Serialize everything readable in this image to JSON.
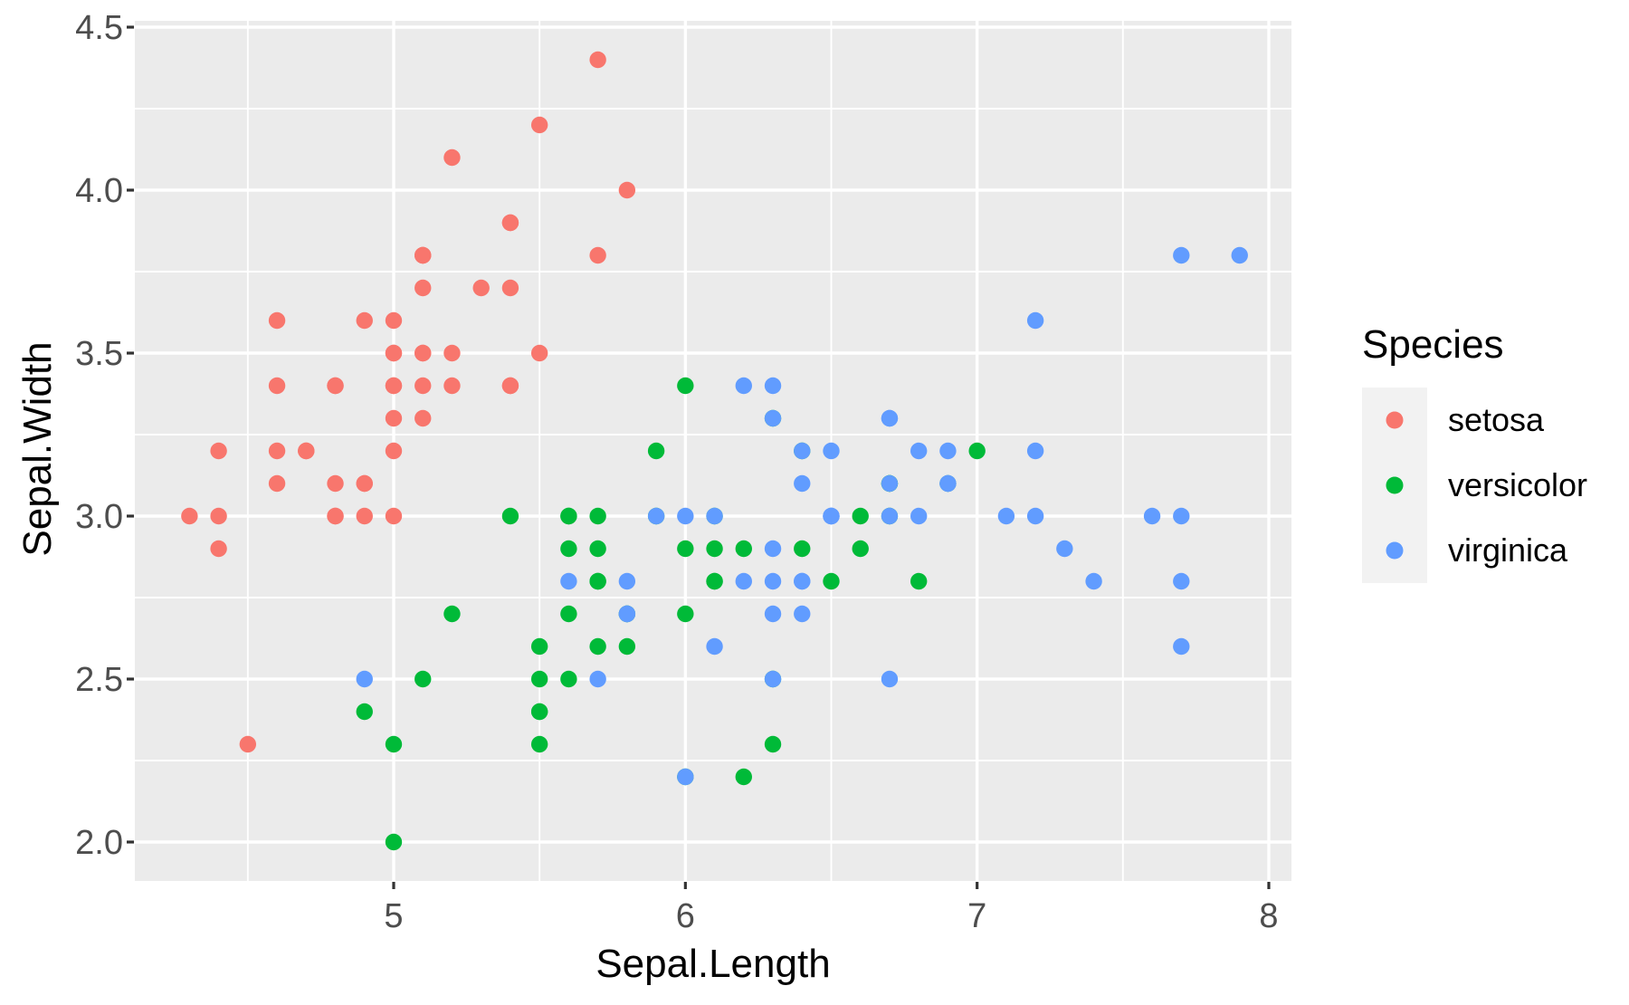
{
  "chart_data": {
    "type": "scatter",
    "title": "",
    "xlabel": "Sepal.Length",
    "ylabel": "Sepal.Width",
    "x_ticks": [
      "5",
      "6",
      "7",
      "8"
    ],
    "x_tick_values": [
      5,
      6,
      7,
      8
    ],
    "x_minor_values": [
      4.5,
      5.5,
      6.5,
      7.5
    ],
    "y_ticks": [
      "2.0",
      "2.5",
      "3.0",
      "3.5",
      "4.0",
      "4.5"
    ],
    "y_tick_values": [
      2.0,
      2.5,
      3.0,
      3.5,
      4.0,
      4.5
    ],
    "y_minor_values": [
      2.25,
      2.75,
      3.25,
      3.75,
      4.25
    ],
    "xlim": [
      4.11,
      8.08
    ],
    "ylim": [
      1.88,
      4.52
    ],
    "grid": "white major and minor gridlines on grey panel",
    "legend": {
      "title": "Species",
      "position": "right",
      "entries": [
        {
          "label": "setosa",
          "color": "#F8766D"
        },
        {
          "label": "versicolor",
          "color": "#00BA38"
        },
        {
          "label": "virginica",
          "color": "#619CFF"
        }
      ]
    },
    "series": [
      {
        "name": "setosa",
        "color": "#F8766D",
        "points": [
          [
            5.1,
            3.5
          ],
          [
            4.9,
            3.0
          ],
          [
            4.7,
            3.2
          ],
          [
            4.6,
            3.1
          ],
          [
            5.0,
            3.6
          ],
          [
            5.4,
            3.9
          ],
          [
            4.6,
            3.4
          ],
          [
            5.0,
            3.4
          ],
          [
            4.4,
            2.9
          ],
          [
            4.9,
            3.1
          ],
          [
            5.4,
            3.7
          ],
          [
            4.8,
            3.4
          ],
          [
            4.8,
            3.0
          ],
          [
            4.3,
            3.0
          ],
          [
            5.8,
            4.0
          ],
          [
            5.7,
            4.4
          ],
          [
            5.4,
            3.9
          ],
          [
            5.1,
            3.5
          ],
          [
            5.7,
            3.8
          ],
          [
            5.1,
            3.8
          ],
          [
            5.4,
            3.4
          ],
          [
            5.1,
            3.7
          ],
          [
            4.6,
            3.6
          ],
          [
            5.1,
            3.3
          ],
          [
            4.8,
            3.4
          ],
          [
            5.0,
            3.0
          ],
          [
            5.0,
            3.4
          ],
          [
            5.2,
            3.5
          ],
          [
            5.2,
            3.4
          ],
          [
            4.7,
            3.2
          ],
          [
            4.8,
            3.1
          ],
          [
            5.4,
            3.4
          ],
          [
            5.2,
            4.1
          ],
          [
            5.5,
            4.2
          ],
          [
            4.9,
            3.1
          ],
          [
            5.0,
            3.2
          ],
          [
            5.5,
            3.5
          ],
          [
            4.9,
            3.6
          ],
          [
            4.4,
            3.0
          ],
          [
            5.1,
            3.4
          ],
          [
            5.0,
            3.5
          ],
          [
            4.5,
            2.3
          ],
          [
            4.4,
            3.2
          ],
          [
            5.0,
            3.5
          ],
          [
            5.1,
            3.8
          ],
          [
            4.8,
            3.0
          ],
          [
            5.1,
            3.8
          ],
          [
            4.6,
            3.2
          ],
          [
            5.3,
            3.7
          ],
          [
            5.0,
            3.3
          ]
        ]
      },
      {
        "name": "versicolor",
        "color": "#00BA38",
        "points": [
          [
            7.0,
            3.2
          ],
          [
            6.4,
            3.2
          ],
          [
            6.9,
            3.1
          ],
          [
            5.5,
            2.3
          ],
          [
            6.5,
            2.8
          ],
          [
            5.7,
            2.8
          ],
          [
            6.3,
            3.3
          ],
          [
            4.9,
            2.4
          ],
          [
            6.6,
            2.9
          ],
          [
            5.2,
            2.7
          ],
          [
            5.0,
            2.0
          ],
          [
            5.9,
            3.0
          ],
          [
            6.0,
            2.2
          ],
          [
            6.1,
            2.9
          ],
          [
            5.6,
            2.9
          ],
          [
            6.7,
            3.1
          ],
          [
            5.6,
            3.0
          ],
          [
            5.8,
            2.7
          ],
          [
            6.2,
            2.2
          ],
          [
            5.6,
            2.5
          ],
          [
            5.9,
            3.2
          ],
          [
            6.1,
            2.8
          ],
          [
            6.3,
            2.5
          ],
          [
            6.1,
            2.8
          ],
          [
            6.4,
            2.9
          ],
          [
            6.6,
            3.0
          ],
          [
            6.8,
            2.8
          ],
          [
            6.7,
            3.0
          ],
          [
            6.0,
            2.9
          ],
          [
            5.7,
            2.6
          ],
          [
            5.5,
            2.4
          ],
          [
            5.5,
            2.4
          ],
          [
            5.8,
            2.7
          ],
          [
            6.0,
            2.7
          ],
          [
            5.4,
            3.0
          ],
          [
            6.0,
            3.4
          ],
          [
            6.7,
            3.1
          ],
          [
            6.3,
            2.3
          ],
          [
            5.6,
            3.0
          ],
          [
            5.5,
            2.5
          ],
          [
            5.5,
            2.6
          ],
          [
            6.1,
            3.0
          ],
          [
            5.8,
            2.6
          ],
          [
            5.0,
            2.3
          ],
          [
            5.6,
            2.7
          ],
          [
            5.7,
            3.0
          ],
          [
            5.7,
            2.9
          ],
          [
            6.2,
            2.9
          ],
          [
            5.1,
            2.5
          ],
          [
            5.7,
            2.8
          ]
        ]
      },
      {
        "name": "virginica",
        "color": "#619CFF",
        "points": [
          [
            6.3,
            3.3
          ],
          [
            5.8,
            2.7
          ],
          [
            7.1,
            3.0
          ],
          [
            6.3,
            2.9
          ],
          [
            6.5,
            3.0
          ],
          [
            7.6,
            3.0
          ],
          [
            4.9,
            2.5
          ],
          [
            7.3,
            2.9
          ],
          [
            6.7,
            2.5
          ],
          [
            7.2,
            3.6
          ],
          [
            6.5,
            3.2
          ],
          [
            6.4,
            2.7
          ],
          [
            6.8,
            3.0
          ],
          [
            5.7,
            2.5
          ],
          [
            5.8,
            2.8
          ],
          [
            6.4,
            3.2
          ],
          [
            6.5,
            3.0
          ],
          [
            7.7,
            3.8
          ],
          [
            7.7,
            2.6
          ],
          [
            6.0,
            2.2
          ],
          [
            6.9,
            3.2
          ],
          [
            5.6,
            2.8
          ],
          [
            7.7,
            2.8
          ],
          [
            6.3,
            2.7
          ],
          [
            6.7,
            3.3
          ],
          [
            7.2,
            3.2
          ],
          [
            6.2,
            2.8
          ],
          [
            6.1,
            3.0
          ],
          [
            6.4,
            2.8
          ],
          [
            7.2,
            3.0
          ],
          [
            7.4,
            2.8
          ],
          [
            7.9,
            3.8
          ],
          [
            6.4,
            2.8
          ],
          [
            6.3,
            2.8
          ],
          [
            6.1,
            2.6
          ],
          [
            7.7,
            3.0
          ],
          [
            6.3,
            3.4
          ],
          [
            6.4,
            3.1
          ],
          [
            6.0,
            3.0
          ],
          [
            6.9,
            3.1
          ],
          [
            6.7,
            3.1
          ],
          [
            6.9,
            3.1
          ],
          [
            5.8,
            2.7
          ],
          [
            6.8,
            3.2
          ],
          [
            6.7,
            3.3
          ],
          [
            6.7,
            3.0
          ],
          [
            6.3,
            2.5
          ],
          [
            6.5,
            3.0
          ],
          [
            6.2,
            3.4
          ],
          [
            5.9,
            3.0
          ]
        ]
      }
    ]
  },
  "style": {
    "background": "#FFFFFF",
    "panel_bg": "#EBEBEB",
    "grid_color": "#FFFFFF",
    "tick_mark_color": "#333333",
    "tick_label_color": "#4D4D4D",
    "axis_title_color": "#000000",
    "legend_key_bg": "#F2F2F2"
  }
}
